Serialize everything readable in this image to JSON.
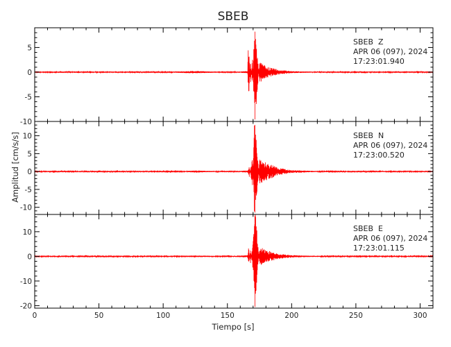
{
  "chart_data": {
    "type": "line",
    "title": "SBEB",
    "xlabel": "Tiempo [s]",
    "ylabel": "Amplitud [cm/s/s]",
    "xlim": [
      0,
      310
    ],
    "xticks": [
      0,
      50,
      100,
      150,
      200,
      250,
      300
    ],
    "trace_color": "#ff0000",
    "panels": [
      {
        "station": "SBEB",
        "component": "Z",
        "date": "APR 06 (097), 2024",
        "time": "17:23:01.940",
        "ylim": [
          -10,
          9
        ],
        "yticks": [
          -10,
          -5,
          0,
          5
        ],
        "noise_level": 0.12,
        "peak_positive": 8.2,
        "peak_negative": -9.6,
        "series": [
          {
            "x": 0,
            "y": 0
          },
          {
            "x": 100,
            "y": 0
          },
          {
            "x": 112,
            "y": 0.15
          },
          {
            "x": 125,
            "y": 0.25
          },
          {
            "x": 150,
            "y": 0
          },
          {
            "x": 165.8,
            "y": 0.2
          },
          {
            "x": 166.2,
            "y": 6.0
          },
          {
            "x": 166.6,
            "y": -5.3
          },
          {
            "x": 168,
            "y": 2.6
          },
          {
            "x": 169.5,
            "y": -3.0
          },
          {
            "x": 170.8,
            "y": 7.0
          },
          {
            "x": 171.3,
            "y": 8.2
          },
          {
            "x": 171.7,
            "y": -9.6
          },
          {
            "x": 173,
            "y": -5.0
          },
          {
            "x": 175,
            "y": 2.2
          },
          {
            "x": 180,
            "y": 1.2
          },
          {
            "x": 190,
            "y": 0.5
          },
          {
            "x": 200,
            "y": 0.2
          },
          {
            "x": 230,
            "y": 0
          },
          {
            "x": 310,
            "y": 0
          }
        ]
      },
      {
        "station": "SBEB",
        "component": "N",
        "date": "APR 06 (097), 2024",
        "time": "17:23:00.520",
        "ylim": [
          -12,
          14
        ],
        "yticks": [
          -10,
          -5,
          0,
          5,
          10
        ],
        "noise_level": 0.15,
        "peak_positive": 13.0,
        "peak_negative": -11.5,
        "series": [
          {
            "x": 0,
            "y": 0
          },
          {
            "x": 110,
            "y": 0
          },
          {
            "x": 125,
            "y": 0.3
          },
          {
            "x": 150,
            "y": 0
          },
          {
            "x": 166,
            "y": 0.3
          },
          {
            "x": 167,
            "y": 1.8
          },
          {
            "x": 169.5,
            "y": -4.5
          },
          {
            "x": 171,
            "y": 13.0
          },
          {
            "x": 171.5,
            "y": -11.5
          },
          {
            "x": 173,
            "y": -8.0
          },
          {
            "x": 175,
            "y": 3.5
          },
          {
            "x": 180,
            "y": 2.5
          },
          {
            "x": 190,
            "y": 1.0
          },
          {
            "x": 200,
            "y": 0.4
          },
          {
            "x": 230,
            "y": 0
          },
          {
            "x": 310,
            "y": 0
          }
        ]
      },
      {
        "station": "SBEB",
        "component": "E",
        "date": "APR 06 (097), 2024",
        "time": "17:23:01.115",
        "ylim": [
          -21,
          17
        ],
        "yticks": [
          -20,
          -10,
          0,
          10
        ],
        "noise_level": 0.2,
        "peak_positive": 16.5,
        "peak_negative": -20.5,
        "series": [
          {
            "x": 0,
            "y": 0
          },
          {
            "x": 110,
            "y": 0
          },
          {
            "x": 125,
            "y": 0.4
          },
          {
            "x": 150,
            "y": 0
          },
          {
            "x": 166,
            "y": 0.5
          },
          {
            "x": 166.5,
            "y": 4.0
          },
          {
            "x": 168,
            "y": -3.0
          },
          {
            "x": 170.5,
            "y": 9.0
          },
          {
            "x": 171.2,
            "y": 16.5
          },
          {
            "x": 171.7,
            "y": -20.5
          },
          {
            "x": 173,
            "y": -10.0
          },
          {
            "x": 175,
            "y": 4.0
          },
          {
            "x": 180,
            "y": 2.5
          },
          {
            "x": 190,
            "y": 1.0
          },
          {
            "x": 200,
            "y": 0.5
          },
          {
            "x": 230,
            "y": 0
          },
          {
            "x": 310,
            "y": 0
          }
        ]
      }
    ]
  }
}
